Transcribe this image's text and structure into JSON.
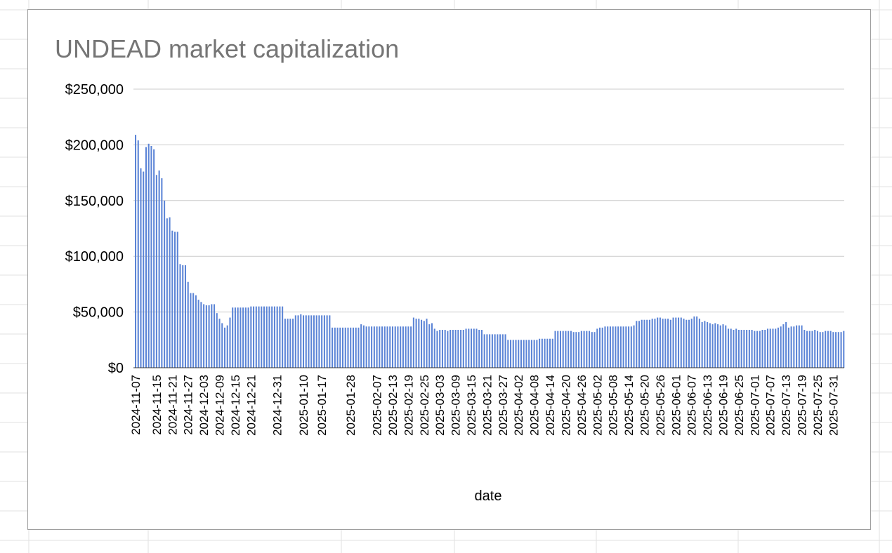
{
  "chart_data": {
    "type": "bar",
    "title": "UNDEAD market capitalization",
    "xlabel": "date",
    "ylabel": "",
    "ylim": [
      0,
      250000
    ],
    "yticks": [
      "$0",
      "$50,000",
      "$100,000",
      "$150,000",
      "$200,000",
      "$250,000"
    ],
    "ytick_values": [
      0,
      50000,
      100000,
      150000,
      200000,
      250000
    ],
    "grid": true,
    "legend": "none",
    "bar_color": "#5b84d6",
    "title_color": "#757575",
    "gridline_color": "#cccccc",
    "axis_line_color": "#333333",
    "x_tick_labels": [
      "2024-11-07",
      "2024-11-15",
      "2024-11-21",
      "2024-11-27",
      "2024-12-03",
      "2024-12-09",
      "2024-12-15",
      "2024-12-21",
      "2024-12-31",
      "2025-01-10",
      "2025-01-17",
      "2025-01-28",
      "2025-02-07",
      "2025-02-13",
      "2025-02-19",
      "2025-02-25",
      "2025-03-03",
      "2025-03-09",
      "2025-03-15",
      "2025-03-21",
      "2025-03-27",
      "2025-04-02",
      "2025-04-08",
      "2025-04-14",
      "2025-04-20",
      "2025-04-26",
      "2025-05-02",
      "2025-05-08",
      "2025-05-14",
      "2025-05-20",
      "2025-05-26",
      "2025-06-01",
      "2025-06-07",
      "2025-06-13",
      "2025-06-19",
      "2025-06-25",
      "2025-07-01",
      "2025-07-07",
      "2025-07-13",
      "2025-07-19",
      "2025-07-25",
      "2025-07-31"
    ],
    "values": [
      209000,
      204000,
      179000,
      176000,
      198000,
      201000,
      199000,
      196000,
      173000,
      177000,
      170000,
      150000,
      134000,
      135000,
      123000,
      122000,
      122000,
      93000,
      92000,
      92000,
      77000,
      67000,
      67000,
      65000,
      61000,
      59000,
      57000,
      56000,
      56000,
      57000,
      57000,
      49000,
      44000,
      40000,
      36000,
      38000,
      45000,
      54000,
      54000,
      54000,
      54000,
      54000,
      54000,
      54000,
      55000,
      55000,
      55000,
      55000,
      55000,
      55000,
      55000,
      55000,
      55000,
      55000,
      55000,
      55000,
      55000,
      44000,
      44000,
      44000,
      44000,
      47000,
      47000,
      48000,
      47000,
      47000,
      47000,
      47000,
      47000,
      47000,
      47000,
      47000,
      47000,
      47000,
      47000,
      36000,
      36000,
      36000,
      36000,
      36000,
      36000,
      36000,
      36000,
      36000,
      36000,
      36000,
      39000,
      38000,
      37000,
      37000,
      37000,
      37000,
      37000,
      37000,
      37000,
      37000,
      37000,
      37000,
      37000,
      37000,
      37000,
      37000,
      37000,
      37000,
      37000,
      37000,
      45000,
      44000,
      44000,
      43000,
      42000,
      44000,
      39000,
      40000,
      35000,
      33000,
      34000,
      34000,
      34000,
      33000,
      34000,
      34000,
      34000,
      34000,
      34000,
      34000,
      35000,
      35000,
      35000,
      35000,
      35000,
      34000,
      34000,
      30000,
      30000,
      30000,
      30000,
      30000,
      30000,
      30000,
      30000,
      30000,
      25000,
      25000,
      25000,
      25000,
      25000,
      25000,
      25000,
      25000,
      25000,
      25000,
      25000,
      25000,
      26000,
      26000,
      26000,
      26000,
      26000,
      26000,
      33000,
      33000,
      33000,
      33000,
      33000,
      33000,
      33000,
      32000,
      32000,
      32000,
      33000,
      33000,
      33000,
      33000,
      32000,
      32000,
      35000,
      36000,
      36000,
      37000,
      37000,
      37000,
      37000,
      37000,
      37000,
      37000,
      37000,
      37000,
      37000,
      37000,
      38000,
      42000,
      42000,
      43000,
      43000,
      43000,
      43000,
      44000,
      44000,
      45000,
      45000,
      44000,
      44000,
      44000,
      43000,
      45000,
      45000,
      45000,
      45000,
      44000,
      43000,
      43000,
      44000,
      46000,
      46000,
      44000,
      41000,
      42000,
      41000,
      40000,
      39000,
      40000,
      39000,
      38000,
      39000,
      38000,
      35000,
      35000,
      34000,
      35000,
      34000,
      34000,
      34000,
      34000,
      34000,
      34000,
      33000,
      33000,
      33000,
      34000,
      34000,
      35000,
      35000,
      35000,
      35000,
      36000,
      37000,
      39000,
      41000,
      36000,
      37000,
      37000,
      38000,
      38000,
      38000,
      34000,
      33000,
      33000,
      33000,
      34000,
      33000,
      32000,
      32000,
      33000,
      33000,
      33000,
      32000,
      32000,
      32000,
      32000,
      33000
    ]
  }
}
